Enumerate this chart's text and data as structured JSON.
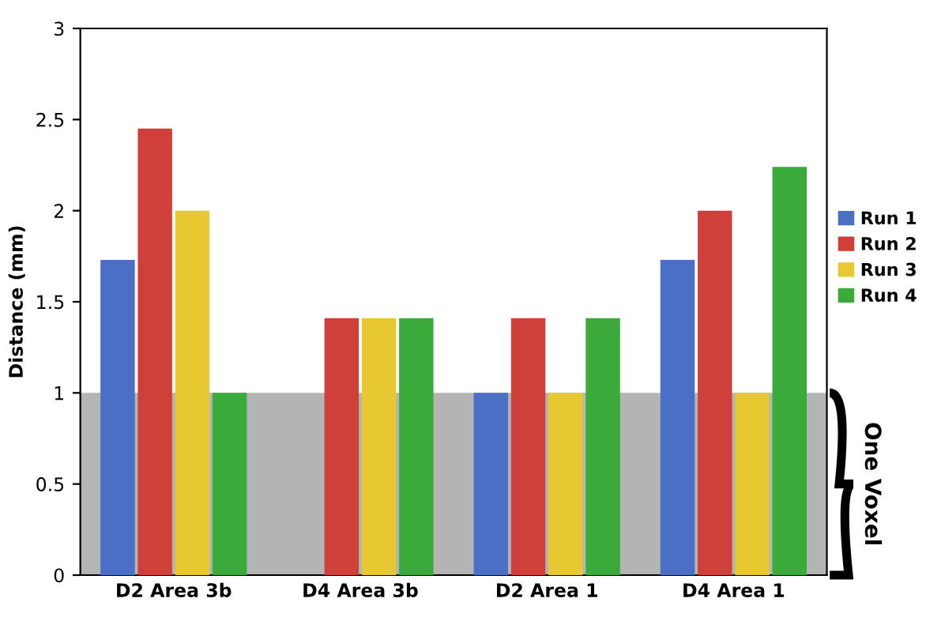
{
  "chart_data": {
    "type": "bar",
    "ylabel": "Distance (mm)",
    "categories": [
      "D2 Area 3b",
      "D4 Area 3b",
      "D2 Area 1",
      "D4 Area 1"
    ],
    "series": [
      {
        "name": "Run 1",
        "color": "#4a6fc4",
        "values": [
          1.73,
          null,
          1.0,
          1.73
        ]
      },
      {
        "name": "Run 2",
        "color": "#d0403a",
        "values": [
          2.45,
          1.41,
          1.41,
          2.0
        ]
      },
      {
        "name": "Run 3",
        "color": "#e8c830",
        "values": [
          2.0,
          1.41,
          1.0,
          1.0
        ]
      },
      {
        "name": "Run 4",
        "color": "#3aaa3a",
        "values": [
          1.0,
          1.41,
          1.41,
          2.24
        ]
      }
    ],
    "ylim": [
      0,
      3
    ],
    "yticks": [
      0,
      0.5,
      1,
      1.5,
      2,
      2.5,
      3
    ],
    "grid": false,
    "legend": "right",
    "bands": [
      {
        "axis": "y",
        "from": 0,
        "to": 1,
        "label": "One Voxel",
        "color": "#b4b4b4"
      }
    ]
  }
}
